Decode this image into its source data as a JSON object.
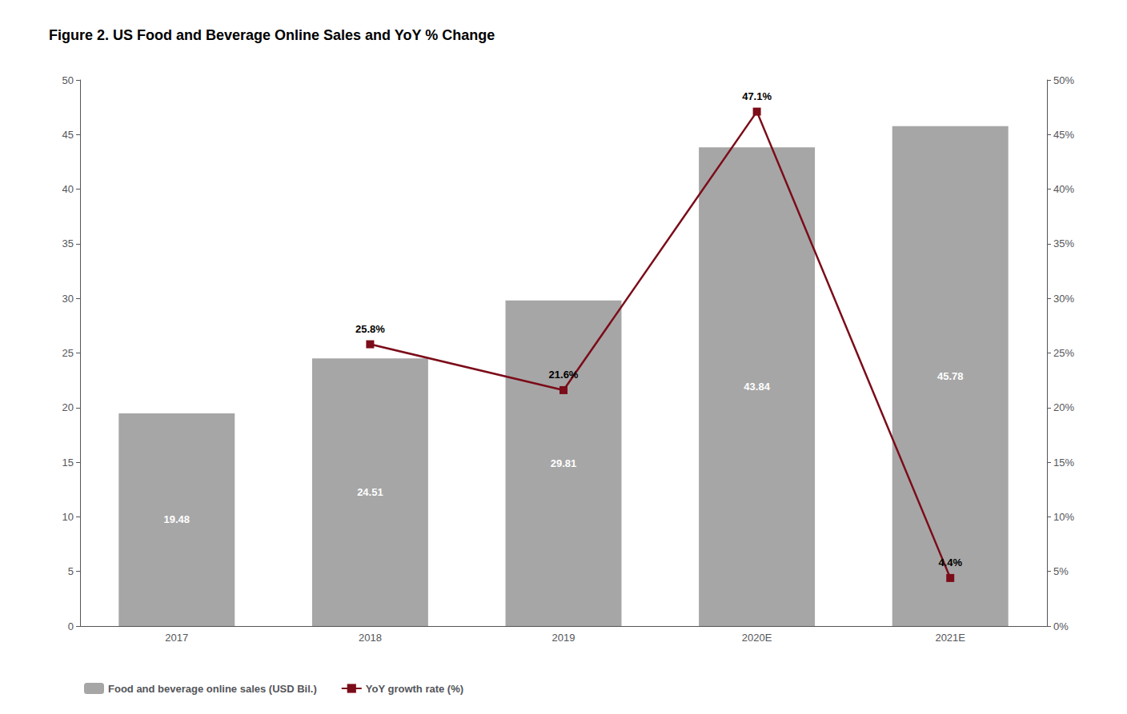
{
  "chart_data": {
    "type": "bar",
    "title": "Figure 2. US Food and Beverage Online Sales and YoY % Change",
    "categories": [
      "2017",
      "2018",
      "2019",
      "2020E",
      "2021E"
    ],
    "series": [
      {
        "name": "Food and beverage online sales (USD Bil.)",
        "type": "bar",
        "color": "#a6a6a6",
        "values": [
          19.48,
          24.51,
          29.81,
          43.84,
          45.78
        ],
        "data_labels": true
      },
      {
        "name": "YoY growth rate (%)",
        "type": "line",
        "color": "#7b0c19",
        "marker": "square",
        "axis": "y2",
        "values": [
          null,
          25.8,
          21.6,
          47.1,
          4.4
        ],
        "value_labels": [
          null,
          "25.8%",
          "21.6%",
          "47.1%",
          "4.4%"
        ],
        "data_labels": true
      }
    ],
    "ylim": [
      0,
      50
    ],
    "yticks": [
      0,
      5,
      10,
      15,
      20,
      25,
      30,
      35,
      40,
      45,
      50
    ],
    "y2lim": [
      0,
      50
    ],
    "y2ticks": [
      {
        "value": 0,
        "label": "0%"
      },
      {
        "value": 5,
        "label": "5%"
      },
      {
        "value": 10,
        "label": "10%"
      },
      {
        "value": 15,
        "label": "15%"
      },
      {
        "value": 20,
        "label": "20%"
      },
      {
        "value": 25,
        "label": "25%"
      },
      {
        "value": 30,
        "label": "30%"
      },
      {
        "value": 35,
        "label": "35%"
      },
      {
        "value": 40,
        "label": "40%"
      },
      {
        "value": 45,
        "label": "45%"
      },
      {
        "value": 50,
        "label": "50%"
      }
    ],
    "legend": "bottom",
    "grid": false
  }
}
